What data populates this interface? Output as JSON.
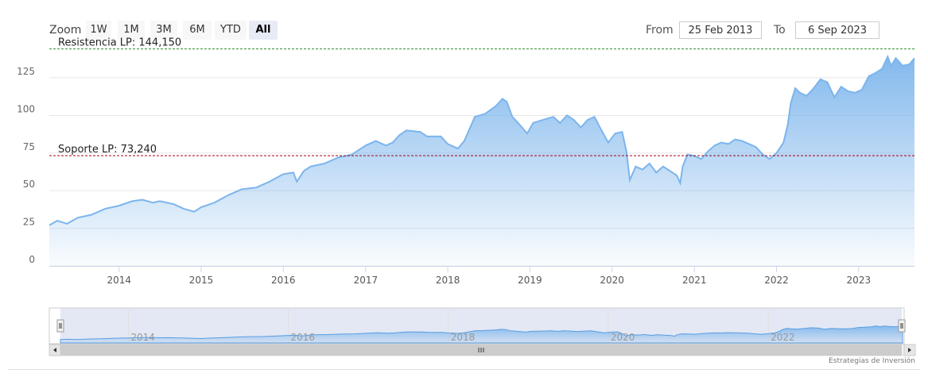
{
  "toolbar": {
    "zoom_label": "Zoom",
    "zoom_buttons": [
      "1W",
      "1M",
      "3M",
      "6M",
      "YTD",
      "All"
    ],
    "active_zoom": "All",
    "from_label": "From",
    "from_value": "25 Feb 2013",
    "to_label": "To",
    "to_value": "6 Sep 2023"
  },
  "credit": "Estrategias de Inversión",
  "colors": {
    "series_line": "#7cb5ec",
    "resistance": "#2e8b2e",
    "support": "#a0001a",
    "navigator_mask": "#ccd6eb"
  },
  "chart_data": {
    "type": "area",
    "x_start": "2013-02-25",
    "x_end": "2023-09-06",
    "ylim": [
      0,
      145
    ],
    "yticks": [
      0,
      25,
      50,
      75,
      100,
      125
    ],
    "xticks": [
      "2014",
      "2015",
      "2016",
      "2017",
      "2018",
      "2019",
      "2020",
      "2021",
      "2022",
      "2023"
    ],
    "navigator_ticks": [
      "2014",
      "2016",
      "2018",
      "2020",
      "2022"
    ],
    "plotlines": [
      {
        "label": "Resistencia LP: 144,150",
        "value": 144.15,
        "style": "dashed"
      },
      {
        "label": "Soporte LP: 73,240",
        "value": 73.24,
        "style": "dashed"
      }
    ],
    "series": [
      {
        "data": [
          [
            "2013-02-25",
            27
          ],
          [
            "2013-04-01",
            30
          ],
          [
            "2013-05-15",
            28
          ],
          [
            "2013-07-01",
            32
          ],
          [
            "2013-09-01",
            34
          ],
          [
            "2013-11-01",
            38
          ],
          [
            "2014-01-01",
            40
          ],
          [
            "2014-03-01",
            43
          ],
          [
            "2014-04-15",
            44
          ],
          [
            "2014-06-01",
            42
          ],
          [
            "2014-07-01",
            43
          ],
          [
            "2014-09-01",
            41
          ],
          [
            "2014-10-15",
            38
          ],
          [
            "2014-12-01",
            36
          ],
          [
            "2015-01-01",
            39
          ],
          [
            "2015-03-01",
            42
          ],
          [
            "2015-05-01",
            47
          ],
          [
            "2015-07-01",
            51
          ],
          [
            "2015-09-01",
            52
          ],
          [
            "2015-11-01",
            56
          ],
          [
            "2016-01-01",
            61
          ],
          [
            "2016-02-15",
            62
          ],
          [
            "2016-03-01",
            56
          ],
          [
            "2016-04-01",
            63
          ],
          [
            "2016-05-01",
            66
          ],
          [
            "2016-07-01",
            68
          ],
          [
            "2016-09-01",
            72
          ],
          [
            "2016-11-01",
            74
          ],
          [
            "2017-01-01",
            80
          ],
          [
            "2017-02-15",
            83
          ],
          [
            "2017-04-01",
            80
          ],
          [
            "2017-05-01",
            82
          ],
          [
            "2017-06-01",
            87
          ],
          [
            "2017-07-01",
            90
          ],
          [
            "2017-09-01",
            89
          ],
          [
            "2017-10-01",
            86
          ],
          [
            "2017-12-01",
            86
          ],
          [
            "2018-01-01",
            81
          ],
          [
            "2018-02-15",
            78
          ],
          [
            "2018-03-15",
            83
          ],
          [
            "2018-05-01",
            99
          ],
          [
            "2018-06-15",
            101
          ],
          [
            "2018-08-01",
            106
          ],
          [
            "2018-09-01",
            111
          ],
          [
            "2018-09-20",
            109
          ],
          [
            "2018-10-15",
            99
          ],
          [
            "2018-11-15",
            94
          ],
          [
            "2018-12-20",
            88
          ],
          [
            "2019-01-15",
            95
          ],
          [
            "2019-03-01",
            97
          ],
          [
            "2019-04-15",
            99
          ],
          [
            "2019-05-15",
            95
          ],
          [
            "2019-06-15",
            100
          ],
          [
            "2019-07-15",
            97
          ],
          [
            "2019-08-15",
            92
          ],
          [
            "2019-09-15",
            97
          ],
          [
            "2019-10-15",
            99
          ],
          [
            "2019-11-15",
            90
          ],
          [
            "2019-12-15",
            82
          ],
          [
            "2020-01-15",
            88
          ],
          [
            "2020-02-15",
            89
          ],
          [
            "2020-03-05",
            76
          ],
          [
            "2020-03-20",
            57
          ],
          [
            "2020-04-15",
            66
          ],
          [
            "2020-05-15",
            64
          ],
          [
            "2020-06-15",
            68
          ],
          [
            "2020-07-15",
            62
          ],
          [
            "2020-08-15",
            66
          ],
          [
            "2020-09-15",
            63
          ],
          [
            "2020-10-15",
            60
          ],
          [
            "2020-10-30",
            55
          ],
          [
            "2020-11-10",
            66
          ],
          [
            "2020-12-01",
            74
          ],
          [
            "2021-01-01",
            73
          ],
          [
            "2021-02-01",
            71
          ],
          [
            "2021-03-01",
            76
          ],
          [
            "2021-04-01",
            80
          ],
          [
            "2021-05-01",
            82
          ],
          [
            "2021-06-01",
            81
          ],
          [
            "2021-07-01",
            84
          ],
          [
            "2021-08-01",
            83
          ],
          [
            "2021-09-01",
            81
          ],
          [
            "2021-10-01",
            79
          ],
          [
            "2021-11-01",
            74
          ],
          [
            "2021-12-01",
            71
          ],
          [
            "2022-01-01",
            75
          ],
          [
            "2022-02-01",
            82
          ],
          [
            "2022-02-20",
            94
          ],
          [
            "2022-03-05",
            108
          ],
          [
            "2022-03-25",
            118
          ],
          [
            "2022-04-15",
            115
          ],
          [
            "2022-05-15",
            113
          ],
          [
            "2022-06-15",
            118
          ],
          [
            "2022-07-15",
            124
          ],
          [
            "2022-08-15",
            122
          ],
          [
            "2022-09-15",
            112
          ],
          [
            "2022-10-15",
            119
          ],
          [
            "2022-11-15",
            116
          ],
          [
            "2022-12-15",
            115
          ],
          [
            "2023-01-15",
            117
          ],
          [
            "2023-02-15",
            126
          ],
          [
            "2023-03-15",
            128
          ],
          [
            "2023-04-15",
            131
          ],
          [
            "2023-05-10",
            139
          ],
          [
            "2023-05-25",
            133
          ],
          [
            "2023-06-15",
            138
          ],
          [
            "2023-07-15",
            133
          ],
          [
            "2023-08-15",
            134
          ],
          [
            "2023-09-06",
            138
          ]
        ]
      }
    ]
  }
}
